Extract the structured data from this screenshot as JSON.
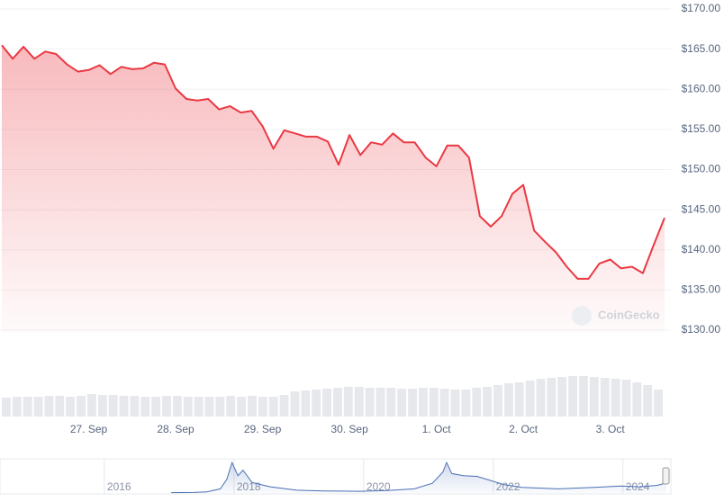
{
  "chart_data": [
    {
      "type": "line",
      "color": "#ea3943",
      "grid": true,
      "watermark": "CoinGecko",
      "categories": [
        null,
        null,
        null,
        null,
        null,
        null,
        null,
        null,
        "27. Sep",
        null,
        null,
        null,
        null,
        null,
        null,
        null,
        "28. Sep",
        null,
        null,
        null,
        null,
        null,
        null,
        null,
        "29. Sep",
        null,
        null,
        null,
        null,
        null,
        null,
        null,
        "30. Sep",
        null,
        null,
        null,
        null,
        null,
        null,
        null,
        "1. Oct",
        null,
        null,
        null,
        null,
        null,
        null,
        null,
        "2. Oct",
        null,
        null,
        null,
        null,
        null,
        null,
        null,
        "3. Oct",
        null,
        null,
        null,
        null,
        null
      ],
      "values": [
        165.5,
        163.8,
        165.3,
        163.8,
        164.7,
        164.4,
        163.1,
        162.2,
        162.4,
        163.0,
        161.9,
        162.8,
        162.5,
        162.6,
        163.3,
        163.1,
        160.1,
        158.8,
        158.6,
        158.8,
        157.5,
        157.9,
        157.1,
        157.3,
        155.4,
        152.6,
        154.9,
        154.5,
        154.1,
        154.1,
        153.5,
        150.6,
        154.3,
        151.8,
        153.4,
        153.1,
        154.5,
        153.4,
        153.4,
        151.5,
        150.4,
        153.0,
        153.0,
        151.5,
        144.2,
        142.9,
        144.2,
        147.0,
        148.1,
        142.4,
        141.0,
        139.7,
        137.9,
        136.4,
        136.4,
        138.3,
        138.8,
        137.7,
        137.9,
        137.1,
        140.6,
        144.0
      ],
      "ylim": [
        130,
        170
      ],
      "yticks": [
        {
          "value": 130,
          "label": "$130.00"
        },
        {
          "value": 135,
          "label": "$135.00"
        },
        {
          "value": 140,
          "label": "$140.00"
        },
        {
          "value": 145,
          "label": "$145.00"
        },
        {
          "value": 150,
          "label": "$150.00"
        },
        {
          "value": 155,
          "label": "$155.00"
        },
        {
          "value": 160,
          "label": "$160.00"
        },
        {
          "value": 165,
          "label": "$165.00"
        },
        {
          "value": 170,
          "label": "$170.00"
        }
      ]
    },
    {
      "type": "bar",
      "color": "#e6e8ec",
      "values": [
        21,
        22,
        22,
        22,
        23,
        23,
        22,
        23,
        25,
        24,
        24,
        23,
        23,
        22,
        22,
        23,
        23,
        22,
        22,
        22,
        22,
        23,
        22,
        23,
        22,
        22,
        24,
        28,
        29,
        30,
        31,
        32,
        33,
        33,
        32,
        32,
        32,
        31,
        31,
        32,
        32,
        31,
        30,
        30,
        32,
        33,
        35,
        37,
        38,
        40,
        42,
        43,
        44,
        45,
        45,
        44,
        43,
        42,
        41,
        38,
        35,
        30
      ]
    },
    {
      "type": "navigator",
      "color": "#4a6fb5",
      "x": [
        2017.03,
        2017.38,
        2017.58,
        2017.79,
        2017.89,
        2017.97,
        2018.06,
        2018.14,
        2018.28,
        2018.56,
        2018.97,
        2019.39,
        2019.94,
        2020.36,
        2020.78,
        2021.06,
        2021.22,
        2021.28,
        2021.36,
        2021.54,
        2021.75,
        2021.96,
        2022.17,
        2022.31,
        2022.44,
        2023.0,
        2023.56,
        2023.97,
        2024.25,
        2024.53,
        2024.67
      ],
      "values": [
        5,
        8,
        15,
        60,
        200,
        440,
        250,
        330,
        150,
        90,
        40,
        30,
        25,
        35,
        60,
        140,
        300,
        440,
        280,
        250,
        240,
        180,
        120,
        100,
        80,
        60,
        80,
        100,
        90,
        110,
        145
      ],
      "xlim": [
        2014.39,
        2024.67
      ],
      "xticks": [
        2016,
        2018,
        2020,
        2022,
        2024
      ],
      "ylim": [
        0,
        480
      ]
    }
  ]
}
